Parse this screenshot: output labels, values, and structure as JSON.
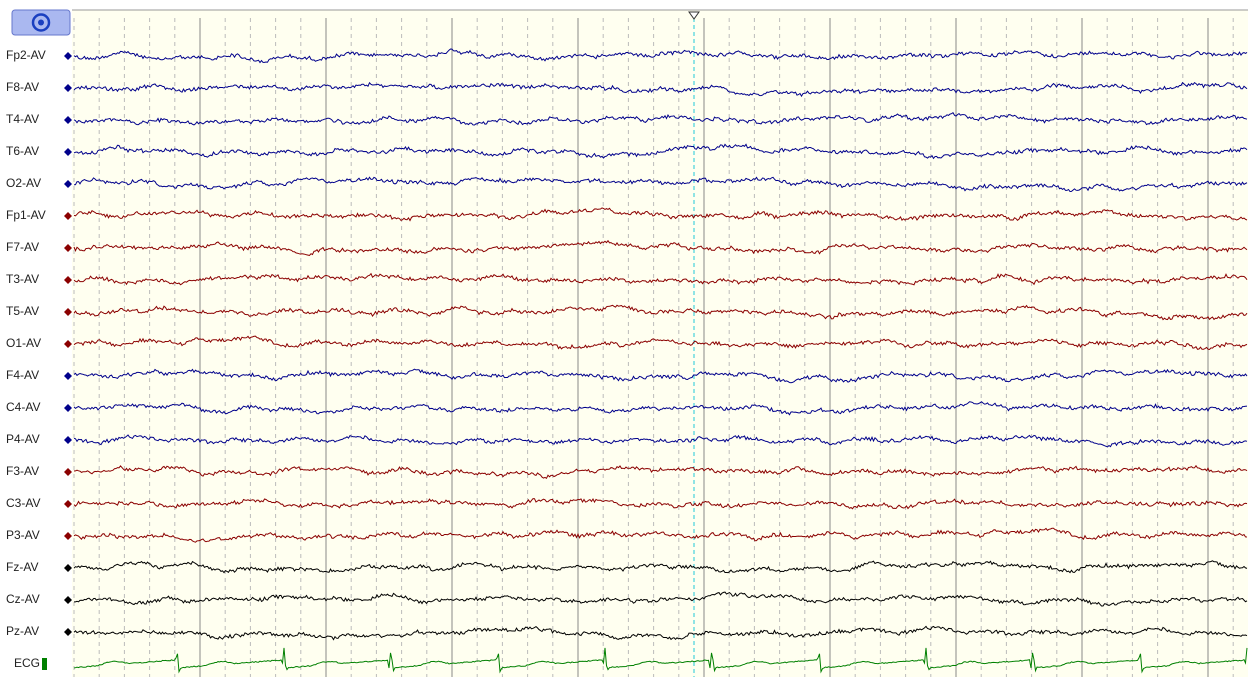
{
  "channels": [
    {
      "label": "Fp2-AV",
      "color": "#00008b"
    },
    {
      "label": "F8-AV",
      "color": "#00008b"
    },
    {
      "label": "T4-AV",
      "color": "#00008b"
    },
    {
      "label": "T6-AV",
      "color": "#00008b"
    },
    {
      "label": "O2-AV",
      "color": "#00008b"
    },
    {
      "label": "Fp1-AV",
      "color": "#8b0000"
    },
    {
      "label": "F7-AV",
      "color": "#8b0000"
    },
    {
      "label": "T3-AV",
      "color": "#8b0000"
    },
    {
      "label": "T5-AV",
      "color": "#8b0000"
    },
    {
      "label": "O1-AV",
      "color": "#8b0000"
    },
    {
      "label": "F4-AV",
      "color": "#00008b"
    },
    {
      "label": "C4-AV",
      "color": "#00008b"
    },
    {
      "label": "P4-AV",
      "color": "#00008b"
    },
    {
      "label": "F3-AV",
      "color": "#8b0000"
    },
    {
      "label": "C3-AV",
      "color": "#8b0000"
    },
    {
      "label": "P3-AV",
      "color": "#8b0000"
    },
    {
      "label": "Fz-AV",
      "color": "#000000"
    },
    {
      "label": "Cz-AV",
      "color": "#000000"
    },
    {
      "label": "Pz-AV",
      "color": "#000000"
    },
    {
      "label": "ECG",
      "color": "#008000"
    }
  ]
}
